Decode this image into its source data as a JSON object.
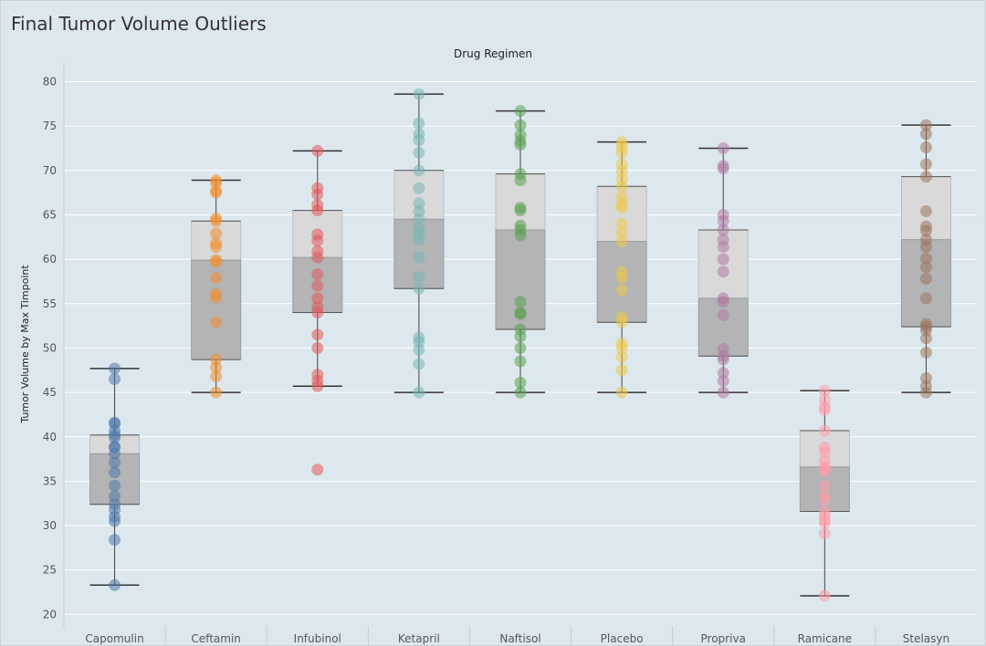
{
  "page": {
    "title": "Final Tumor Volume Outliers"
  },
  "chart_data": {
    "type": "box",
    "title": "Final Tumor Volume Outliers",
    "column_header": "Drug Regimen",
    "ylabel": "Tumor Volume by Max Timpoint",
    "xlabel": "",
    "ylim": [
      18.5,
      82
    ],
    "yticks": [
      20,
      25,
      30,
      35,
      40,
      45,
      50,
      55,
      60,
      65,
      70,
      75,
      80
    ],
    "grid": true,
    "categories": [
      "Capomulin",
      "Ceftamin",
      "Infubinol",
      "Ketapril",
      "Naftisol",
      "Placebo",
      "Propriva",
      "Ramicane",
      "Stelasyn"
    ],
    "series": [
      {
        "category": "Capomulin",
        "color": "#4e79a7",
        "whisker_low": 23.3,
        "q1": 32.4,
        "median": 38.1,
        "q3": 40.2,
        "whisker_high": 47.7,
        "points": [
          23.3,
          28.4,
          30.5,
          31.0,
          31.8,
          32.4,
          33.3,
          34.5,
          36.0,
          37.1,
          38.1,
          38.8,
          38.9,
          39.9,
          40.2,
          40.7,
          41.5,
          41.6,
          46.5,
          47.7
        ]
      },
      {
        "category": "Ceftamin",
        "color": "#f28e2b",
        "whisker_low": 45.0,
        "q1": 48.7,
        "median": 59.9,
        "q3": 64.3,
        "whisker_high": 68.9,
        "points": [
          45.0,
          46.8,
          47.8,
          48.7,
          52.9,
          55.7,
          56.1,
          57.9,
          59.7,
          59.9,
          61.4,
          61.8,
          62.9,
          64.3,
          64.6,
          67.5,
          67.7,
          68.6,
          68.9
        ]
      },
      {
        "category": "Infubinol",
        "color": "#e15759",
        "whisker_low": 45.7,
        "q1": 54.0,
        "median": 60.2,
        "q3": 65.5,
        "whisker_high": 72.2,
        "points": [
          36.3,
          45.7,
          46.3,
          47.0,
          50.0,
          51.5,
          54.0,
          54.6,
          55.6,
          57.0,
          58.3,
          60.2,
          60.9,
          62.1,
          62.8,
          65.5,
          66.1,
          67.3,
          68.0,
          72.2
        ]
      },
      {
        "category": "Ketapril",
        "color": "#76b7b2",
        "whisker_low": 45.0,
        "q1": 56.7,
        "median": 64.5,
        "q3": 70.0,
        "whisker_high": 78.6,
        "points": [
          45.0,
          48.2,
          49.8,
          50.7,
          51.2,
          56.7,
          58.0,
          60.2,
          62.2,
          62.9,
          63.5,
          64.5,
          65.4,
          66.3,
          68.0,
          70.0,
          72.0,
          73.4,
          74.1,
          75.3,
          78.6
        ]
      },
      {
        "category": "Naftisol",
        "color": "#59a14f",
        "whisker_low": 45.0,
        "q1": 52.1,
        "median": 63.3,
        "q3": 69.6,
        "whisker_high": 76.7,
        "points": [
          45.0,
          46.1,
          48.5,
          50.0,
          51.3,
          52.1,
          53.8,
          54.0,
          55.2,
          62.7,
          63.3,
          63.8,
          65.5,
          65.8,
          68.9,
          69.6,
          72.9,
          73.3,
          74.0,
          75.1,
          76.7
        ]
      },
      {
        "category": "Placebo",
        "color": "#edc948",
        "whisker_low": 45.0,
        "q1": 52.9,
        "median": 62.0,
        "q3": 68.2,
        "whisker_high": 73.2,
        "points": [
          45.0,
          47.5,
          49.0,
          50.0,
          50.5,
          52.9,
          53.5,
          56.5,
          57.9,
          58.6,
          62.0,
          63.0,
          64.0,
          65.8,
          66.2,
          67.0,
          68.2,
          69.0,
          69.9,
          70.7,
          72.0,
          72.7,
          73.2
        ]
      },
      {
        "category": "Propriva",
        "color": "#af7aa1",
        "whisker_low": 45.0,
        "q1": 49.1,
        "median": 55.6,
        "q3": 63.3,
        "whisker_high": 72.5,
        "points": [
          45.0,
          46.3,
          47.2,
          48.7,
          49.1,
          49.9,
          53.7,
          55.2,
          55.6,
          58.6,
          60.0,
          61.4,
          62.2,
          63.3,
          64.3,
          65.0,
          70.2,
          70.5,
          72.5
        ]
      },
      {
        "category": "Ramicane",
        "color": "#ff9da7",
        "whisker_low": 22.1,
        "q1": 31.6,
        "median": 36.6,
        "q3": 40.7,
        "whisker_high": 45.2,
        "points": [
          22.1,
          29.1,
          30.3,
          30.6,
          31.1,
          31.6,
          32.9,
          33.4,
          34.5,
          36.1,
          36.4,
          36.6,
          37.3,
          38.3,
          38.8,
          40.7,
          43.0,
          43.4,
          44.2,
          45.2
        ]
      },
      {
        "category": "Stelasyn",
        "color": "#9c755f",
        "whisker_low": 45.0,
        "q1": 52.4,
        "median": 62.2,
        "q3": 69.3,
        "whisker_high": 75.1,
        "points": [
          45.0,
          45.7,
          46.6,
          49.5,
          51.1,
          52.0,
          52.4,
          52.7,
          55.6,
          57.8,
          59.1,
          60.1,
          61.4,
          62.2,
          63.2,
          63.7,
          65.4,
          69.3,
          70.7,
          72.6,
          74.1,
          75.1
        ]
      }
    ]
  }
}
